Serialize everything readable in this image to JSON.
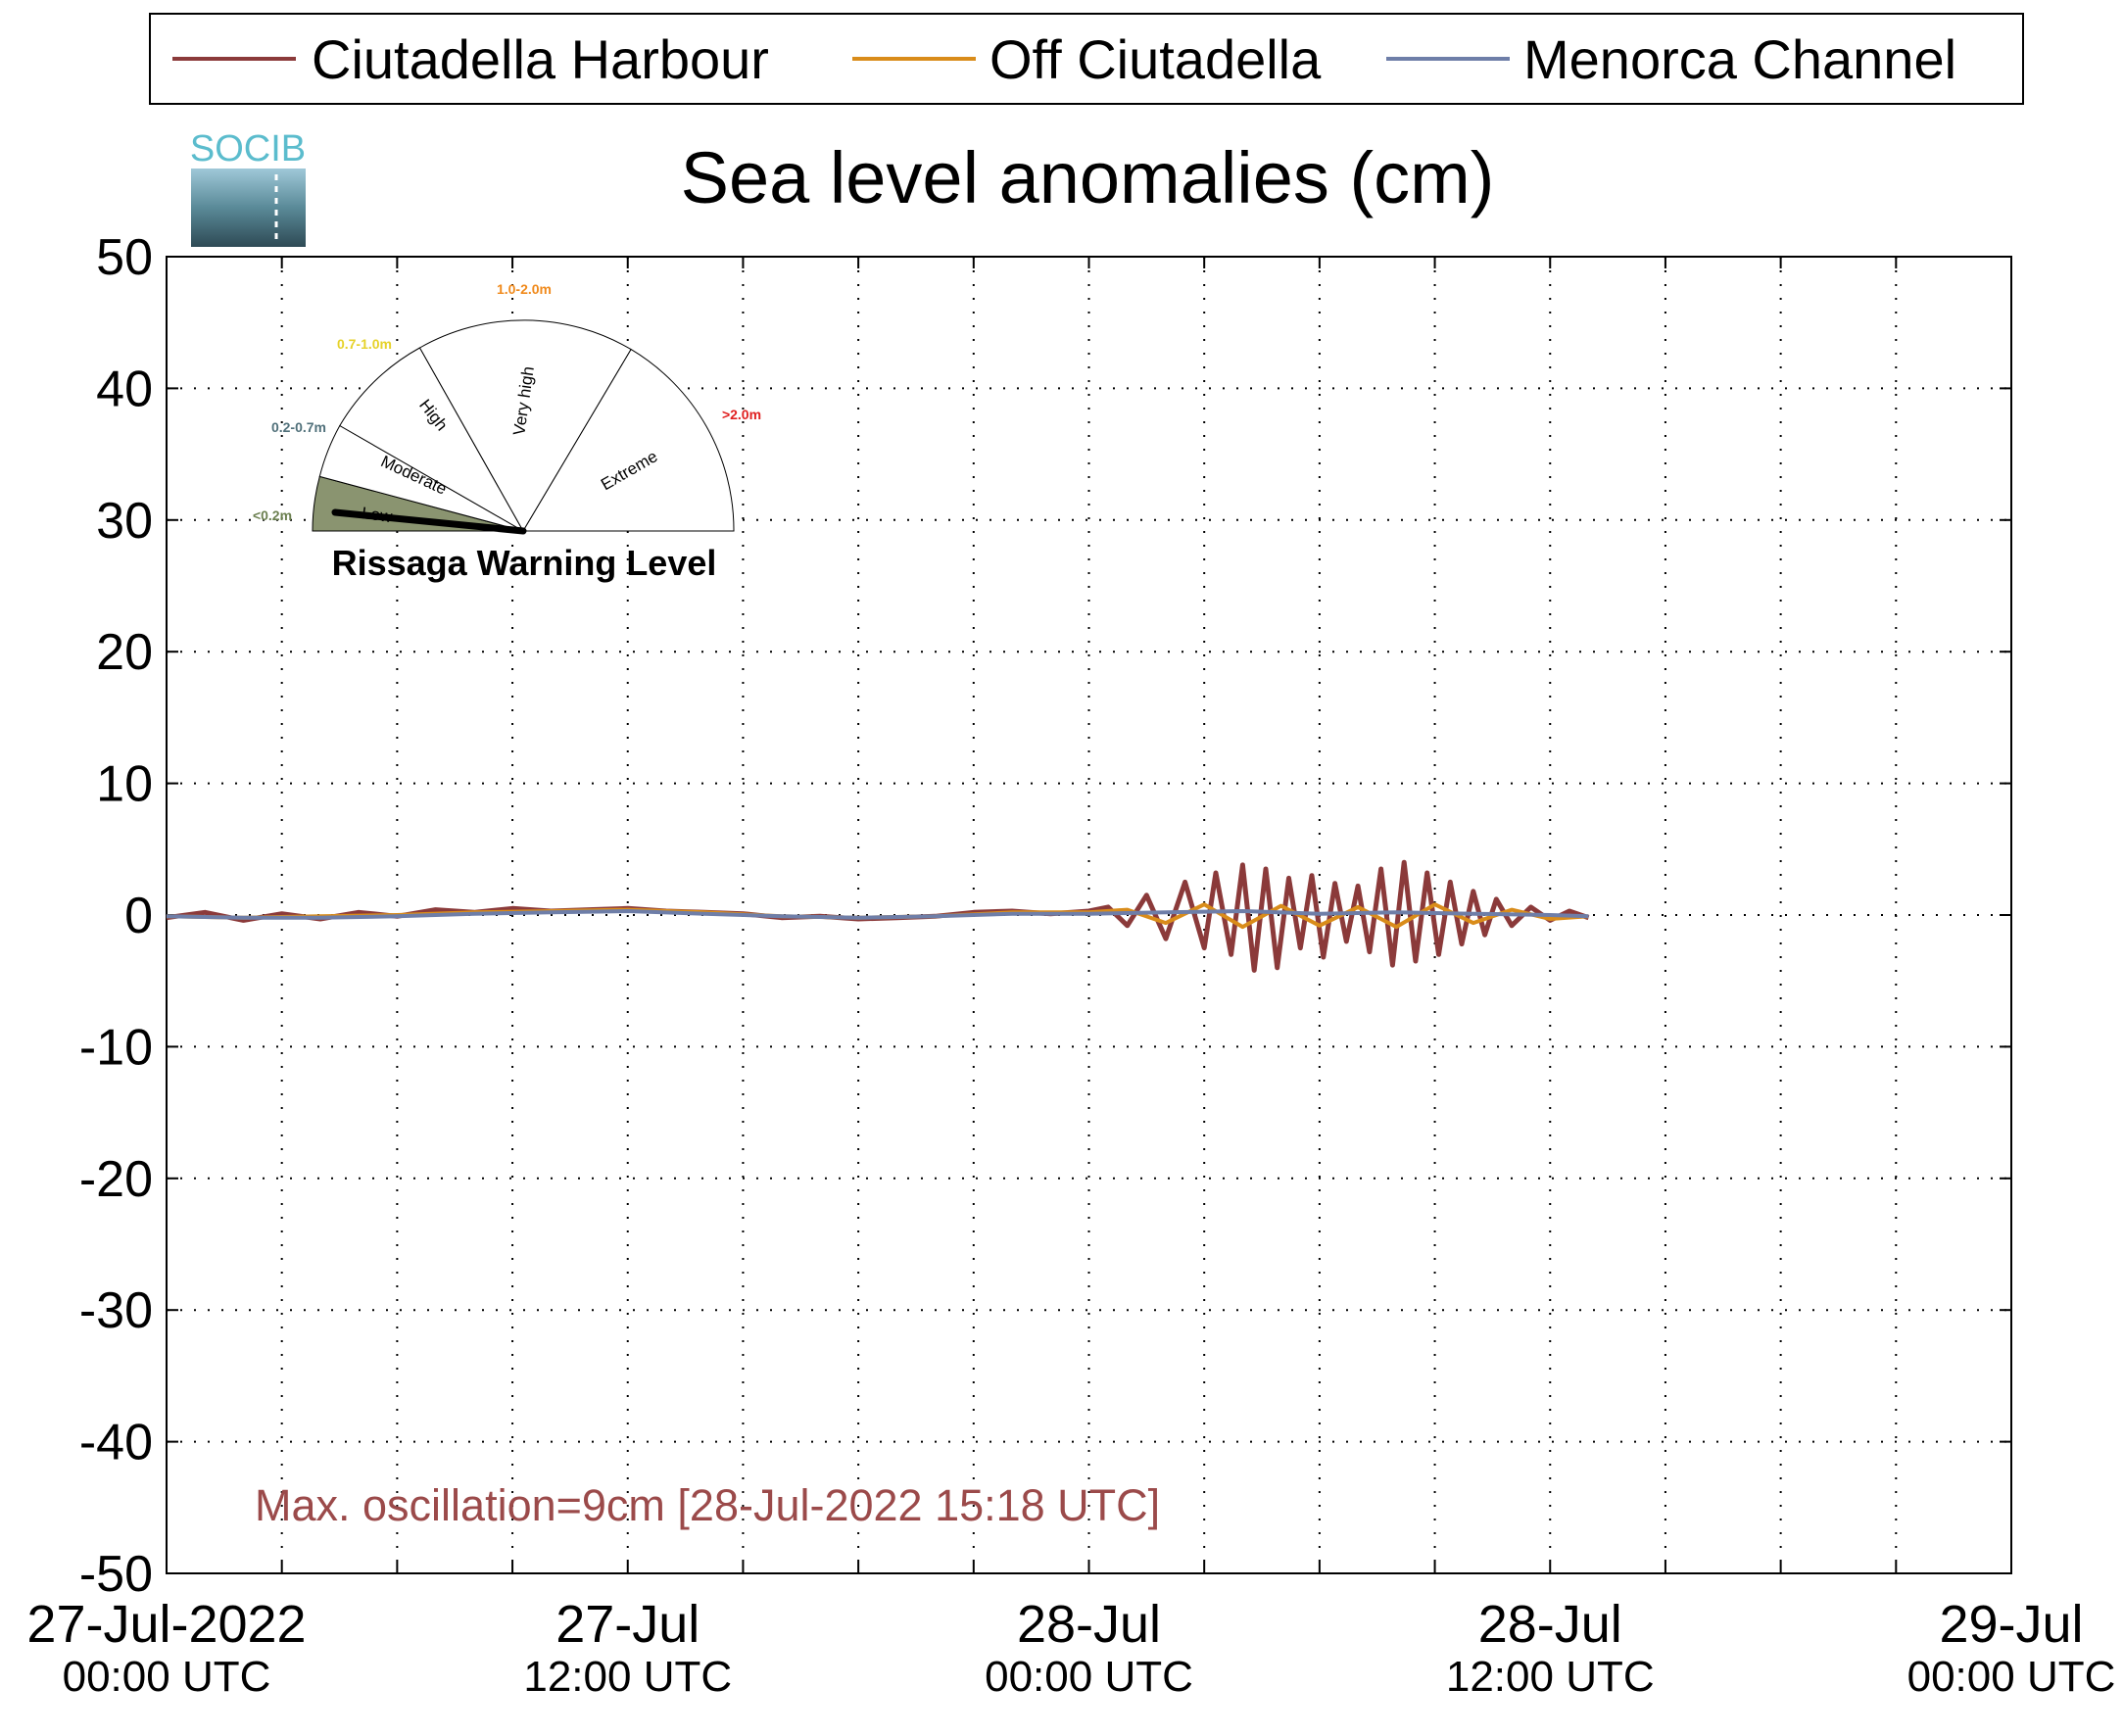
{
  "chart_data": {
    "type": "line",
    "title": "Sea level anomalies (cm)",
    "ylim": [
      -50,
      50
    ],
    "yticks": [
      "50",
      "40",
      "30",
      "20",
      "10",
      "0",
      "-10",
      "-20",
      "-30",
      "-40",
      "-50"
    ],
    "x_start": "27-Jul-2022 00:00 UTC",
    "x_end": "29-Jul-2022 00:00 UTC",
    "xticks": [
      {
        "line1": "27-Jul-2022",
        "line2": "00:00 UTC"
      },
      {
        "line1": "27-Jul",
        "line2": "12:00 UTC"
      },
      {
        "line1": "28-Jul",
        "line2": "00:00 UTC"
      },
      {
        "line1": "28-Jul",
        "line2": "12:00 UTC"
      },
      {
        "line1": "29-Jul",
        "line2": "00:00 UTC"
      }
    ],
    "grid": true,
    "legend_position": "top",
    "series": [
      {
        "name": "Ciutadella Harbour",
        "color": "#8b3a3a",
        "points": [
          [
            0,
            -0.2
          ],
          [
            1,
            0.2
          ],
          [
            2,
            -0.4
          ],
          [
            3,
            0.1
          ],
          [
            4,
            -0.3
          ],
          [
            5,
            0.2
          ],
          [
            6,
            -0.1
          ],
          [
            7,
            0.4
          ],
          [
            8,
            0.2
          ],
          [
            9,
            0.5
          ],
          [
            10,
            0.3
          ],
          [
            11,
            0.4
          ],
          [
            12,
            0.5
          ],
          [
            13,
            0.3
          ],
          [
            14,
            0.2
          ],
          [
            15,
            0.1
          ],
          [
            16,
            -0.2
          ],
          [
            17,
            -0.1
          ],
          [
            18,
            -0.3
          ],
          [
            19,
            -0.2
          ],
          [
            20,
            -0.1
          ],
          [
            21,
            0.2
          ],
          [
            22,
            0.3
          ],
          [
            23,
            0.1
          ],
          [
            24,
            0.3
          ],
          [
            24.5,
            0.6
          ],
          [
            25,
            -0.8
          ],
          [
            25.5,
            1.5
          ],
          [
            26,
            -1.8
          ],
          [
            26.5,
            2.5
          ],
          [
            27,
            -2.5
          ],
          [
            27.3,
            3.2
          ],
          [
            27.7,
            -3.0
          ],
          [
            28,
            3.8
          ],
          [
            28.3,
            -4.2
          ],
          [
            28.6,
            3.5
          ],
          [
            28.9,
            -4.0
          ],
          [
            29.2,
            2.8
          ],
          [
            29.5,
            -2.5
          ],
          [
            29.8,
            3.0
          ],
          [
            30.1,
            -3.2
          ],
          [
            30.4,
            2.4
          ],
          [
            30.7,
            -2.0
          ],
          [
            31,
            2.2
          ],
          [
            31.3,
            -2.8
          ],
          [
            31.6,
            3.5
          ],
          [
            31.9,
            -3.8
          ],
          [
            32.2,
            4.0
          ],
          [
            32.5,
            -3.5
          ],
          [
            32.8,
            3.2
          ],
          [
            33.1,
            -3.0
          ],
          [
            33.4,
            2.5
          ],
          [
            33.7,
            -2.2
          ],
          [
            34,
            1.8
          ],
          [
            34.3,
            -1.5
          ],
          [
            34.6,
            1.2
          ],
          [
            35,
            -0.8
          ],
          [
            35.5,
            0.6
          ],
          [
            36,
            -0.4
          ],
          [
            36.5,
            0.3
          ],
          [
            37,
            -0.2
          ]
        ]
      },
      {
        "name": "Off Ciutadella",
        "color": "#d98c1a",
        "points": [
          [
            0,
            -0.1
          ],
          [
            2,
            -0.2
          ],
          [
            4,
            -0.1
          ],
          [
            6,
            0
          ],
          [
            8,
            0.2
          ],
          [
            10,
            0.3
          ],
          [
            12,
            0.4
          ],
          [
            14,
            0.2
          ],
          [
            16,
            -0.1
          ],
          [
            18,
            -0.2
          ],
          [
            20,
            -0.1
          ],
          [
            22,
            0.2
          ],
          [
            24,
            0.2
          ],
          [
            25,
            0.4
          ],
          [
            26,
            -0.6
          ],
          [
            27,
            0.8
          ],
          [
            28,
            -0.9
          ],
          [
            29,
            0.7
          ],
          [
            30,
            -0.8
          ],
          [
            31,
            0.6
          ],
          [
            32,
            -0.9
          ],
          [
            33,
            0.8
          ],
          [
            34,
            -0.6
          ],
          [
            35,
            0.4
          ],
          [
            36,
            -0.3
          ],
          [
            37,
            -0.1
          ]
        ]
      },
      {
        "name": "Menorca Channel",
        "color": "#6e7ea8",
        "points": [
          [
            0,
            -0.1
          ],
          [
            2,
            -0.2
          ],
          [
            4,
            -0.2
          ],
          [
            6,
            -0.1
          ],
          [
            8,
            0.1
          ],
          [
            10,
            0.2
          ],
          [
            12,
            0.3
          ],
          [
            14,
            0.1
          ],
          [
            16,
            -0.1
          ],
          [
            18,
            -0.2
          ],
          [
            20,
            -0.1
          ],
          [
            22,
            0.1
          ],
          [
            24,
            0.1
          ],
          [
            26,
            0.2
          ],
          [
            28,
            0.3
          ],
          [
            30,
            0.1
          ],
          [
            32,
            0.2
          ],
          [
            34,
            0.1
          ],
          [
            36,
            0.0
          ],
          [
            37,
            -0.1
          ]
        ]
      }
    ],
    "annotation": "Max. oscillation=9cm [28-Jul-2022 15:18 UTC]",
    "annotation_color": "#9b4a4a"
  },
  "logo": {
    "text": "SOCIB"
  },
  "gauge": {
    "title": "Rissaga Warning Level",
    "levels": [
      {
        "label": "Low",
        "range": "<0.2m",
        "range_color": "#6b7f4f"
      },
      {
        "label": "Moderate",
        "range": "0.2-0.7m",
        "range_color": "#50707a"
      },
      {
        "label": "High",
        "range": "0.7-1.0m",
        "range_color": "#e6d22a"
      },
      {
        "label": "Very high",
        "range": "1.0-2.0m",
        "range_color": "#f08a1c"
      },
      {
        "label": "Extreme",
        "range": ">2.0m",
        "range_color": "#e02020"
      }
    ],
    "active_level": "Low",
    "active_color": "#8a9470"
  }
}
